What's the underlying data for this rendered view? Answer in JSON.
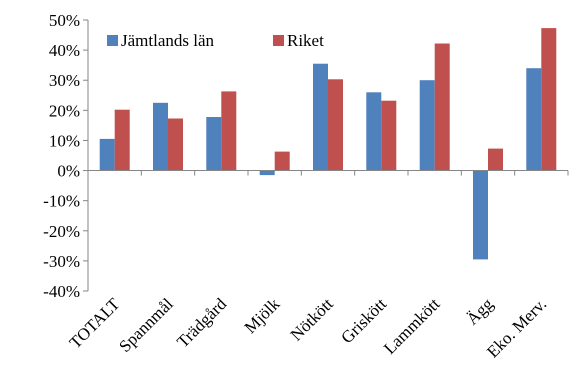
{
  "chart_data": {
    "type": "bar",
    "categories": [
      "TOTALT",
      "Spannmål",
      "Trädgård",
      "Mjölk",
      "Nötkött",
      "Griskött",
      "Lammkött",
      "Ägg",
      "Eko. Merv."
    ],
    "series": [
      {
        "name": "Jämtlands län",
        "color": "#4F81BD",
        "values": [
          10.5,
          22.5,
          17.8,
          -1.5,
          35.5,
          26.0,
          30.0,
          -29.5,
          34.0
        ]
      },
      {
        "name": "Riket",
        "color": "#C0504D",
        "values": [
          20.2,
          17.3,
          26.3,
          6.3,
          30.3,
          23.2,
          42.2,
          7.3,
          47.3
        ]
      }
    ],
    "ylim": [
      -40,
      50
    ],
    "ytick_step": 10,
    "ytick_labels": [
      "-40%",
      "-30%",
      "-20%",
      "-10%",
      "0%",
      "10%",
      "20%",
      "30%",
      "40%",
      "50%"
    ],
    "grid": false,
    "legend_position": "top-left",
    "title": "",
    "xlabel": "",
    "ylabel": ""
  }
}
